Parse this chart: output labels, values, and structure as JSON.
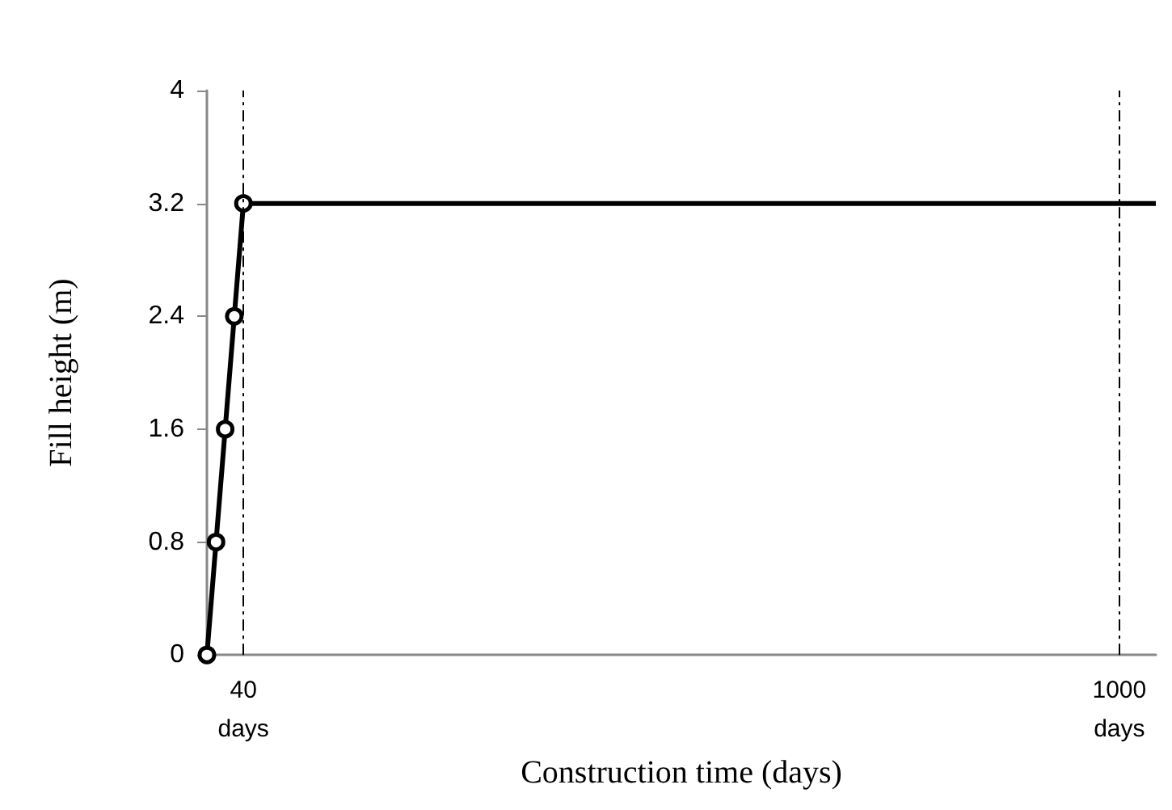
{
  "chart_data": {
    "type": "line",
    "xlabel": "Construction time (days)",
    "ylabel": "Fill height (m)",
    "xlim": [
      0,
      1040
    ],
    "xticks": [
      {
        "value": 40,
        "label": "40\ndays"
      },
      {
        "value": 1000,
        "label": "1000\ndays"
      }
    ],
    "ylim": [
      0,
      4
    ],
    "yticks": [
      0,
      0.8,
      1.6,
      2.4,
      3.2,
      4
    ],
    "grid": false,
    "series": [
      {
        "color": "#000000",
        "x": [
          0,
          10,
          20,
          30,
          40
        ],
        "values": [
          0,
          0.8,
          1.6,
          2.4,
          3.2
        ],
        "marker": "circle"
      },
      {
        "color": "#000000",
        "x": [
          40,
          1040
        ],
        "values": [
          3.2,
          3.2
        ],
        "marker": "none"
      }
    ],
    "ref_lines": [
      {
        "axis": "x",
        "value": 40,
        "color": "#000000",
        "line_style": "dashed"
      },
      {
        "axis": "x",
        "value": 1000,
        "color": "#000000",
        "line_style": "dashed"
      }
    ]
  }
}
